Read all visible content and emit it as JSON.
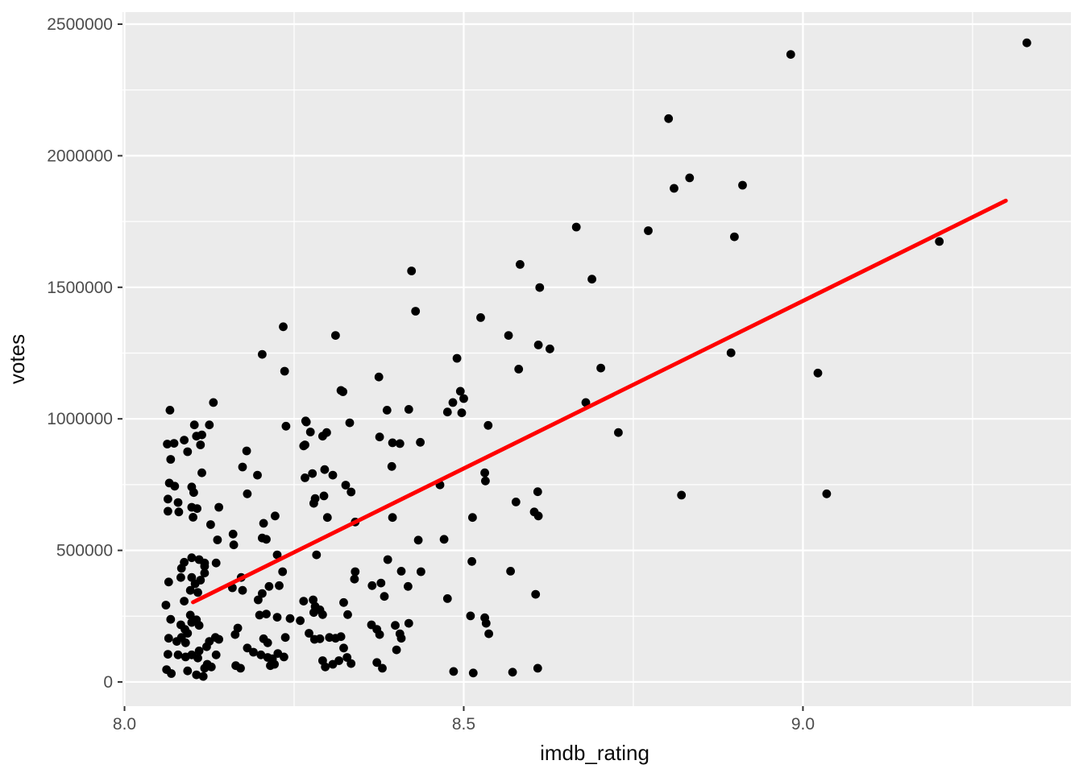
{
  "chart_data": {
    "type": "scatter",
    "title": "",
    "xlabel": "imdb_rating",
    "ylabel": "votes",
    "legend": false,
    "grid": true,
    "panel_bg": "#EBEBEB",
    "grid_color": "#FFFFFF",
    "point_color": "#000000",
    "tick_color": "#333333",
    "tick_label_color": "#4D4D4D",
    "xlim": [
      7.997,
      9.395
    ],
    "ylim": [
      -92000,
      2546000
    ],
    "x_ticks": [
      8.0,
      8.5,
      9.0
    ],
    "x_tick_labels": [
      "8.0",
      "8.5",
      "9.0"
    ],
    "x_minor_ticks": [
      8.25,
      8.75,
      9.25
    ],
    "y_ticks": [
      0,
      500000,
      1000000,
      1500000,
      2000000,
      2500000
    ],
    "y_tick_labels": [
      "0",
      "500000",
      "1000000",
      "1500000",
      "2000000",
      "2500000"
    ],
    "y_minor_ticks": [
      250000,
      750000,
      1250000,
      1750000,
      2250000
    ],
    "smooth_line": {
      "color": "#FF0000",
      "width": 5,
      "x1": 8.101,
      "y1": 303000,
      "x2": 9.299,
      "y2": 1829000
    },
    "points": [
      [
        8.131,
        1062000
      ],
      [
        8.067,
        1033000
      ],
      [
        8.322,
        1103000
      ],
      [
        8.103,
        977000
      ],
      [
        8.125,
        977000
      ],
      [
        8.238,
        972000
      ],
      [
        8.268,
        988000
      ],
      [
        8.106,
        934000
      ],
      [
        8.114,
        939000
      ],
      [
        8.063,
        904000
      ],
      [
        8.073,
        907000
      ],
      [
        8.088,
        919000
      ],
      [
        8.112,
        901000
      ],
      [
        8.093,
        875000
      ],
      [
        8.068,
        846000
      ],
      [
        8.18,
        878000
      ],
      [
        8.174,
        817000
      ],
      [
        8.196,
        786000
      ],
      [
        8.114,
        795000
      ],
      [
        8.264,
        897000
      ],
      [
        8.274,
        950000
      ],
      [
        8.292,
        934000
      ],
      [
        8.298,
        948000
      ],
      [
        8.266,
        776000
      ],
      [
        8.277,
        792000
      ],
      [
        8.295,
        807000
      ],
      [
        8.307,
        786000
      ],
      [
        8.326,
        748000
      ],
      [
        8.334,
        722000
      ],
      [
        8.066,
        756000
      ],
      [
        8.074,
        744000
      ],
      [
        8.099,
        741000
      ],
      [
        8.102,
        720000
      ],
      [
        8.064,
        695000
      ],
      [
        8.079,
        682000
      ],
      [
        8.064,
        649000
      ],
      [
        8.08,
        646000
      ],
      [
        8.099,
        664000
      ],
      [
        8.107,
        659000
      ],
      [
        8.101,
        626000
      ],
      [
        8.139,
        664000
      ],
      [
        8.181,
        715000
      ],
      [
        8.294,
        707000
      ],
      [
        8.279,
        679000
      ],
      [
        8.299,
        625000
      ],
      [
        8.222,
        631000
      ],
      [
        8.127,
        598000
      ],
      [
        8.137,
        540000
      ],
      [
        8.16,
        562000
      ],
      [
        8.161,
        521000
      ],
      [
        8.205,
        603000
      ],
      [
        8.203,
        547000
      ],
      [
        8.209,
        542000
      ],
      [
        8.34,
        608000
      ],
      [
        8.225,
        483000
      ],
      [
        8.233,
        419000
      ],
      [
        8.283,
        483000
      ],
      [
        8.088,
        455000
      ],
      [
        8.099,
        472000
      ],
      [
        8.11,
        465000
      ],
      [
        8.118,
        452000
      ],
      [
        8.135,
        452000
      ],
      [
        8.083,
        397000
      ],
      [
        8.099,
        397000
      ],
      [
        8.065,
        380000
      ],
      [
        8.112,
        387000
      ],
      [
        8.097,
        348000
      ],
      [
        8.108,
        340000
      ],
      [
        8.172,
        397000
      ],
      [
        8.174,
        348000
      ],
      [
        8.197,
        312000
      ],
      [
        8.203,
        336000
      ],
      [
        8.213,
        363000
      ],
      [
        8.061,
        292000
      ],
      [
        8.088,
        307000
      ],
      [
        8.228,
        366000
      ],
      [
        8.225,
        246000
      ],
      [
        8.199,
        254000
      ],
      [
        8.209,
        258000
      ],
      [
        8.244,
        241000
      ],
      [
        8.259,
        233000
      ],
      [
        8.068,
        238000
      ],
      [
        8.097,
        254000
      ],
      [
        8.106,
        236000
      ],
      [
        8.099,
        226000
      ],
      [
        8.11,
        215000
      ],
      [
        8.083,
        217000
      ],
      [
        8.089,
        200000
      ],
      [
        8.093,
        185000
      ],
      [
        8.084,
        169000
      ],
      [
        8.077,
        154000
      ],
      [
        8.09,
        149000
      ],
      [
        8.065,
        166000
      ],
      [
        8.064,
        105000
      ],
      [
        8.079,
        103000
      ],
      [
        8.09,
        95000
      ],
      [
        8.099,
        103000
      ],
      [
        8.11,
        118000
      ],
      [
        8.108,
        91000
      ],
      [
        8.121,
        134000
      ],
      [
        8.125,
        154000
      ],
      [
        8.134,
        169000
      ],
      [
        8.139,
        162000
      ],
      [
        8.122,
        67000
      ],
      [
        8.118,
        52000
      ],
      [
        8.128,
        57000
      ],
      [
        8.135,
        103000
      ],
      [
        8.062,
        47000
      ],
      [
        8.069,
        32000
      ],
      [
        8.093,
        42000
      ],
      [
        8.106,
        27000
      ],
      [
        8.116,
        21000
      ],
      [
        8.167,
        205000
      ],
      [
        8.163,
        180000
      ],
      [
        8.205,
        164000
      ],
      [
        8.211,
        149000
      ],
      [
        8.237,
        169000
      ],
      [
        8.181,
        129000
      ],
      [
        8.19,
        113000
      ],
      [
        8.201,
        103000
      ],
      [
        8.211,
        93000
      ],
      [
        8.218,
        88000
      ],
      [
        8.226,
        108000
      ],
      [
        8.235,
        95000
      ],
      [
        8.164,
        62000
      ],
      [
        8.171,
        52000
      ],
      [
        8.215,
        62000
      ],
      [
        8.221,
        67000
      ],
      [
        8.267,
        992000
      ],
      [
        8.319,
        1108000
      ],
      [
        8.332,
        985000
      ],
      [
        8.266,
        901000
      ],
      [
        8.281,
        697000
      ],
      [
        8.264,
        307000
      ],
      [
        8.278,
        312000
      ],
      [
        8.281,
        287000
      ],
      [
        8.288,
        274000
      ],
      [
        8.292,
        256000
      ],
      [
        8.279,
        264000
      ],
      [
        8.323,
        302000
      ],
      [
        8.272,
        185000
      ],
      [
        8.28,
        162000
      ],
      [
        8.288,
        164000
      ],
      [
        8.302,
        169000
      ],
      [
        8.311,
        166000
      ],
      [
        8.319,
        172000
      ],
      [
        8.329,
        256000
      ],
      [
        8.323,
        129000
      ],
      [
        8.328,
        93000
      ],
      [
        8.334,
        70000
      ],
      [
        8.292,
        81000
      ],
      [
        8.296,
        57000
      ],
      [
        8.307,
        67000
      ],
      [
        8.316,
        81000
      ],
      [
        8.34,
        419000
      ],
      [
        8.339,
        391000
      ],
      [
        8.104,
        373000
      ],
      [
        8.118,
        414000
      ],
      [
        8.084,
        432000
      ],
      [
        8.118,
        440000
      ],
      [
        8.159,
        358000
      ],
      [
        8.234,
        1350000
      ],
      [
        8.311,
        1317000
      ],
      [
        8.203,
        1245000
      ],
      [
        8.236,
        1181000
      ],
      [
        8.495,
        1105000
      ],
      [
        8.5,
        1077000
      ],
      [
        8.484,
        1062000
      ],
      [
        8.387,
        1033000
      ],
      [
        8.419,
        1036000
      ],
      [
        8.476,
        1026000
      ],
      [
        8.497,
        1023000
      ],
      [
        8.536,
        975000
      ],
      [
        8.376,
        931000
      ],
      [
        8.395,
        909000
      ],
      [
        8.406,
        906000
      ],
      [
        8.436,
        911000
      ],
      [
        8.394,
        819000
      ],
      [
        8.531,
        795000
      ],
      [
        8.532,
        764000
      ],
      [
        8.465,
        749000
      ],
      [
        8.609,
        723000
      ],
      [
        8.577,
        684000
      ],
      [
        8.604,
        646000
      ],
      [
        8.61,
        631000
      ],
      [
        8.395,
        625000
      ],
      [
        8.513,
        625000
      ],
      [
        8.433,
        539000
      ],
      [
        8.471,
        542000
      ],
      [
        8.388,
        465000
      ],
      [
        8.512,
        458000
      ],
      [
        8.408,
        421000
      ],
      [
        8.437,
        419000
      ],
      [
        8.569,
        421000
      ],
      [
        8.365,
        366000
      ],
      [
        8.378,
        376000
      ],
      [
        8.418,
        363000
      ],
      [
        8.383,
        325000
      ],
      [
        8.476,
        317000
      ],
      [
        8.606,
        333000
      ],
      [
        8.51,
        251000
      ],
      [
        8.531,
        244000
      ],
      [
        8.533,
        223000
      ],
      [
        8.364,
        217000
      ],
      [
        8.372,
        200000
      ],
      [
        8.399,
        215000
      ],
      [
        8.419,
        223000
      ],
      [
        8.376,
        180000
      ],
      [
        8.406,
        183000
      ],
      [
        8.408,
        166000
      ],
      [
        8.537,
        183000
      ],
      [
        8.401,
        122000
      ],
      [
        8.372,
        74000
      ],
      [
        8.38,
        52000
      ],
      [
        8.485,
        40000
      ],
      [
        8.514,
        34000
      ],
      [
        8.572,
        37000
      ],
      [
        8.609,
        52000
      ],
      [
        8.423,
        1562000
      ],
      [
        8.583,
        1587000
      ],
      [
        8.666,
        1729000
      ],
      [
        8.612,
        1499000
      ],
      [
        8.429,
        1409000
      ],
      [
        8.525,
        1385000
      ],
      [
        8.566,
        1317000
      ],
      [
        8.61,
        1281000
      ],
      [
        8.627,
        1266000
      ],
      [
        8.49,
        1230000
      ],
      [
        8.581,
        1189000
      ],
      [
        8.375,
        1159000
      ],
      [
        8.802,
        2141000
      ],
      [
        8.833,
        1916000
      ],
      [
        8.81,
        1876000
      ],
      [
        8.911,
        1888000
      ],
      [
        8.772,
        1715000
      ],
      [
        8.899,
        1692000
      ],
      [
        8.689,
        1531000
      ],
      [
        9.33,
        2429000
      ],
      [
        9.201,
        1674000
      ],
      [
        9.022,
        1174000
      ],
      [
        8.982,
        2385000
      ],
      [
        8.894,
        1251000
      ],
      [
        8.702,
        1193000
      ],
      [
        8.68,
        1062000
      ],
      [
        8.728,
        948000
      ],
      [
        8.821,
        710000
      ],
      [
        9.035,
        715000
      ]
    ]
  }
}
